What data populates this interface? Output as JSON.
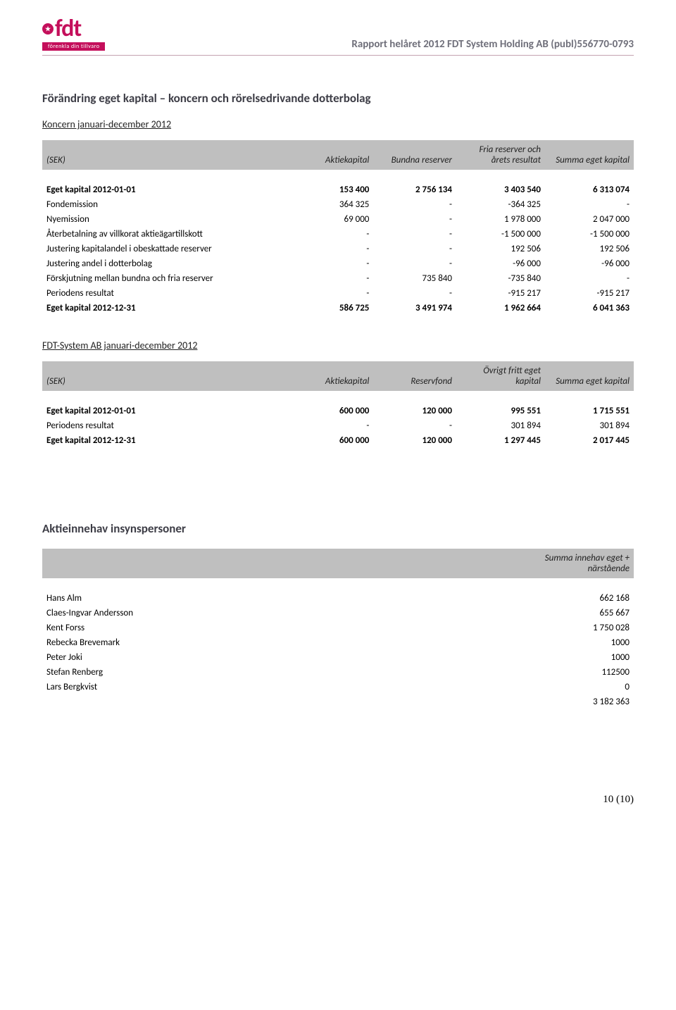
{
  "header": {
    "logo_letters": "fdt",
    "logo_tagline": "förenkla din tillvaro",
    "report_title": "Rapport helåret 2012 FDT System Holding AB (publ)556770-0793"
  },
  "section1": {
    "title": "Förändring eget kapital – koncern och rörelsedrivande dotterbolag",
    "subtitle": "Koncern januari-december 2012",
    "cols": [
      "(SEK)",
      "Aktiekapital",
      "Bundna reserver",
      "Fria reserver och årets resultat",
      "Summa eget kapital"
    ],
    "rows": [
      {
        "label": "Eget kapital 2012-01-01",
        "c": [
          "153 400",
          "2 756 134",
          "3 403 540",
          "6 313 074"
        ],
        "bold": true
      },
      {
        "label": "Fondemission",
        "c": [
          "364 325",
          "-",
          "-364 325",
          "-"
        ]
      },
      {
        "label": "Nyemission",
        "c": [
          "69 000",
          "-",
          "1 978 000",
          "2 047 000"
        ]
      },
      {
        "label": "Återbetalning av villkorat aktieägartillskott",
        "c": [
          "-",
          "-",
          "-1 500 000",
          "-1 500 000"
        ]
      },
      {
        "label": "Justering kapitalandel i obeskattade reserver",
        "c": [
          "-",
          "-",
          "192 506",
          "192 506"
        ]
      },
      {
        "label": "Justering andel i dotterbolag",
        "c": [
          "-",
          "-",
          "-96 000",
          "-96 000"
        ]
      },
      {
        "label": "Förskjutning mellan bundna och fria reserver",
        "c": [
          "-",
          "735 840",
          "-735 840",
          "-"
        ]
      },
      {
        "label": "Periodens resultat",
        "c": [
          "-",
          "-",
          "-915 217",
          "-915 217"
        ]
      },
      {
        "label": "Eget kapital 2012-12-31",
        "c": [
          "586 725",
          "3 491 974",
          "1 962 664",
          "6 041 363"
        ],
        "bold": true
      }
    ]
  },
  "section2": {
    "subtitle": "FDT-System AB januari-december 2012",
    "cols": [
      "(SEK)",
      "Aktiekapital",
      "Reservfond",
      "Övrigt fritt eget kapital",
      "Summa eget kapital"
    ],
    "rows": [
      {
        "label": "Eget kapital 2012-01-01",
        "c": [
          "600 000",
          "120 000",
          "995 551",
          "1 715 551"
        ],
        "bold": true
      },
      {
        "label": "Periodens resultat",
        "c": [
          "-",
          "-",
          "301 894",
          "301 894"
        ]
      },
      {
        "label": "Eget kapital 2012-12-31",
        "c": [
          "600 000",
          "120 000",
          "1 297 445",
          "2 017 445"
        ],
        "bold": true
      }
    ]
  },
  "section3": {
    "title": "Aktieinnehav insynspersoner",
    "header_right": "Summa innehav eget + närstående",
    "rows": [
      {
        "label": "Hans Alm",
        "v": "662 168"
      },
      {
        "label": "Claes-Ingvar Andersson",
        "v": "655 667"
      },
      {
        "label": "Kent Forss",
        "v": "1 750 028"
      },
      {
        "label": "Rebecka Brevemark",
        "v": "1000"
      },
      {
        "label": "Peter Joki",
        "v": "1000"
      },
      {
        "label": "Stefan Renberg",
        "v": "112500"
      },
      {
        "label": "Lars Bergkvist",
        "v": "0"
      },
      {
        "label": "",
        "v": "3 182 363"
      }
    ]
  },
  "page_num": "10 (10)",
  "colors": {
    "magenta": "#c40f5b",
    "header_gray": "#bfbfbf",
    "title_gray": "#6f6f7a",
    "rule": "#c4a3b1"
  },
  "col_widths": {
    "t1": [
      "42%",
      "14%",
      "14%",
      "15%",
      "15%"
    ],
    "t2": [
      "42%",
      "14%",
      "14%",
      "15%",
      "15%"
    ],
    "t3": [
      "70%",
      "30%"
    ]
  }
}
